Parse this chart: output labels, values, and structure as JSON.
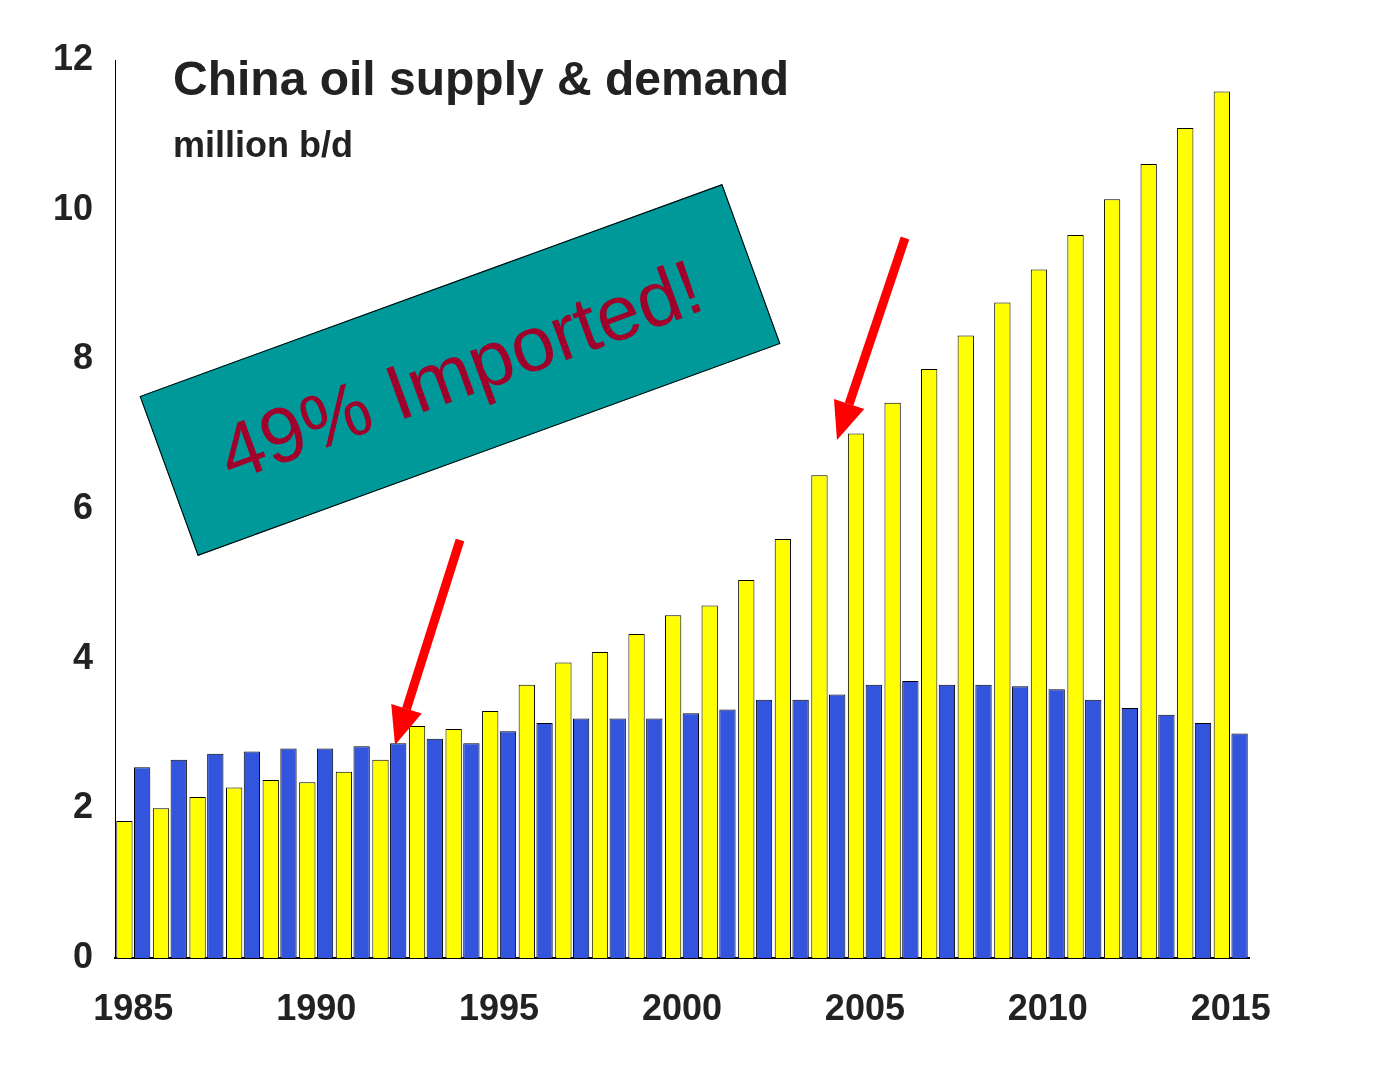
{
  "chart_data": {
    "type": "bar",
    "title": "China oil supply & demand",
    "subtitle": "million b/d",
    "categories": [
      "1985",
      null,
      null,
      null,
      null,
      "1990",
      null,
      null,
      null,
      null,
      "1995",
      null,
      null,
      null,
      null,
      "2000",
      null,
      null,
      null,
      null,
      "2005",
      null,
      null,
      null,
      null,
      "2010",
      null,
      null,
      null,
      null,
      "2015"
    ],
    "series": [
      {
        "color": "#ffff00",
        "values": [
          1.83,
          2.0,
          2.15,
          2.28,
          2.38,
          2.35,
          2.49,
          2.65,
          3.1,
          3.06,
          3.3,
          3.65,
          3.95,
          4.09,
          4.33,
          4.58,
          4.71,
          5.05,
          5.6,
          6.45,
          7.01,
          7.42,
          7.87,
          8.32,
          8.76,
          9.2,
          9.66,
          10.14,
          10.61,
          11.09,
          11.58
        ]
      },
      {
        "color": "#3355dd",
        "values": [
          2.55,
          2.65,
          2.73,
          2.76,
          2.8,
          2.8,
          2.83,
          2.87,
          2.93,
          2.87,
          3.03,
          3.14,
          3.2,
          3.2,
          3.2,
          3.27,
          3.32,
          3.45,
          3.45,
          3.52,
          3.65,
          3.7,
          3.65,
          3.65,
          3.63,
          3.59,
          3.45,
          3.34,
          3.25,
          3.14,
          3.0
        ]
      }
    ],
    "ylim": [
      0,
      12
    ],
    "yticks": [
      0,
      2,
      4,
      6,
      8,
      10,
      12
    ],
    "annotations": [
      "49% Imported!"
    ]
  }
}
